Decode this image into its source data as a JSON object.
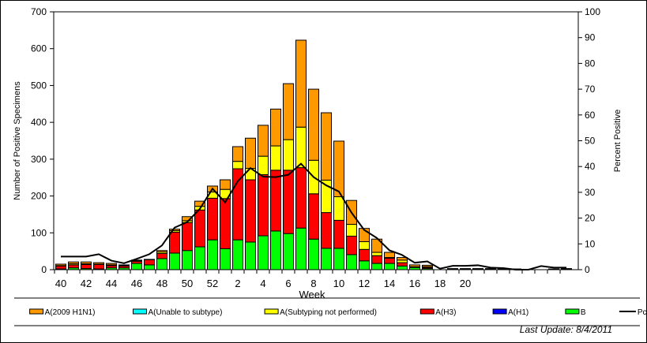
{
  "chart_data": {
    "type": "bar",
    "stacked": true,
    "xlabel": "Week",
    "ylabel": "Number of Positive Specimens",
    "y2label": "Percent Positive",
    "ylim": [
      0,
      700
    ],
    "y2lim": [
      0,
      100
    ],
    "yticks": [
      0,
      100,
      200,
      300,
      400,
      500,
      600,
      700
    ],
    "y2ticks": [
      0,
      10,
      20,
      30,
      40,
      50,
      60,
      70,
      80,
      90,
      100
    ],
    "grid": false,
    "legend_position": "bottom",
    "categories": [
      40,
      41,
      42,
      43,
      44,
      45,
      46,
      47,
      48,
      49,
      50,
      51,
      52,
      1,
      2,
      3,
      4,
      5,
      6,
      7,
      8,
      9,
      10,
      11,
      12,
      13,
      14,
      15,
      16,
      17,
      18,
      19,
      20,
      21,
      22,
      23,
      24,
      25,
      26,
      27,
      28
    ],
    "xtick_labels": [
      "40",
      "42",
      "44",
      "46",
      "48",
      "50",
      "52",
      "2",
      "4",
      "6",
      "8",
      "10",
      "12",
      "14",
      "16",
      "18",
      "20"
    ],
    "series": [
      {
        "name": "B",
        "color": "#00ff00",
        "values": [
          2,
          5,
          3,
          2,
          5,
          5,
          17,
          13,
          30,
          45,
          52,
          62,
          81,
          57,
          81,
          75,
          92,
          105,
          98,
          113,
          83,
          58,
          58,
          41,
          24,
          17,
          17,
          10,
          6,
          3,
          0,
          1,
          1,
          1,
          1,
          1,
          0,
          0,
          0,
          1,
          1
        ]
      },
      {
        "name": "A(H1)",
        "color": "#0000ff",
        "values": [
          0,
          0,
          0,
          0,
          0,
          0,
          0,
          0,
          0,
          0,
          0,
          0,
          0,
          0,
          0,
          0,
          0,
          0,
          0,
          0,
          0,
          0,
          0,
          0,
          0,
          0,
          0,
          0,
          0,
          0,
          0,
          0,
          0,
          0,
          0,
          0,
          0,
          0,
          0,
          0,
          0
        ]
      },
      {
        "name": "A(H3)",
        "color": "#ff0000",
        "values": [
          8,
          8,
          11,
          12,
          6,
          5,
          6,
          14,
          14,
          57,
          76,
          100,
          113,
          136,
          193,
          169,
          166,
          165,
          172,
          164,
          123,
          97,
          76,
          50,
          31,
          21,
          14,
          9,
          2,
          3,
          0,
          1,
          1,
          1,
          1,
          0,
          1,
          0,
          0,
          0,
          1
        ]
      },
      {
        "name": "A(Subtyping not performed)",
        "color": "#ffff00",
        "values": [
          1,
          3,
          2,
          1,
          2,
          1,
          1,
          0,
          4,
          4,
          5,
          10,
          17,
          25,
          20,
          31,
          50,
          66,
          83,
          110,
          91,
          88,
          64,
          32,
          21,
          9,
          2,
          7,
          0,
          2,
          0,
          0,
          0,
          0,
          0,
          0,
          0,
          0,
          0,
          0,
          0
        ]
      },
      {
        "name": "A(Unable to subtype)",
        "color": "#00ffff",
        "values": [
          0,
          0,
          0,
          0,
          0,
          0,
          0,
          0,
          0,
          0,
          0,
          0,
          0,
          0,
          0,
          0,
          0,
          0,
          0,
          0,
          0,
          0,
          0,
          0,
          0,
          0,
          0,
          0,
          0,
          0,
          0,
          0,
          0,
          0,
          0,
          0,
          0,
          0,
          0,
          0,
          0
        ]
      },
      {
        "name": "A(2009 H1N1)",
        "color": "#ff9900",
        "values": [
          4,
          5,
          5,
          4,
          4,
          2,
          2,
          1,
          4,
          4,
          11,
          14,
          16,
          26,
          40,
          82,
          84,
          100,
          152,
          236,
          193,
          183,
          151,
          65,
          36,
          36,
          14,
          7,
          5,
          4,
          0,
          1,
          1,
          1,
          1,
          1,
          1,
          0,
          0,
          1,
          1
        ]
      }
    ],
    "line": {
      "name": "Pct Positive",
      "color": "#000000",
      "axis": "right",
      "values": [
        5.1,
        5.1,
        5.1,
        6,
        3.5,
        2.5,
        4.2,
        6,
        9.4,
        16.3,
        18.5,
        23.6,
        31.4,
        26.1,
        34.3,
        39.4,
        36.1,
        35.9,
        36.8,
        41.1,
        35.9,
        32.7,
        30.3,
        22.1,
        15.4,
        12.3,
        7.5,
        5.7,
        2.7,
        3.2,
        0.4,
        1.5,
        1.5,
        1.7,
        0.8,
        0.6,
        0,
        0,
        1.4,
        0.8,
        0.8
      ]
    },
    "legend_order": [
      "A(2009 H1N1)",
      "A(Unable to subtype)",
      "A(Subtyping not performed)",
      "A(H3)",
      "A(H1)",
      "B",
      "Pct Positive"
    ]
  },
  "footer": {
    "last_update": "Last Update: 8/4/2011"
  }
}
